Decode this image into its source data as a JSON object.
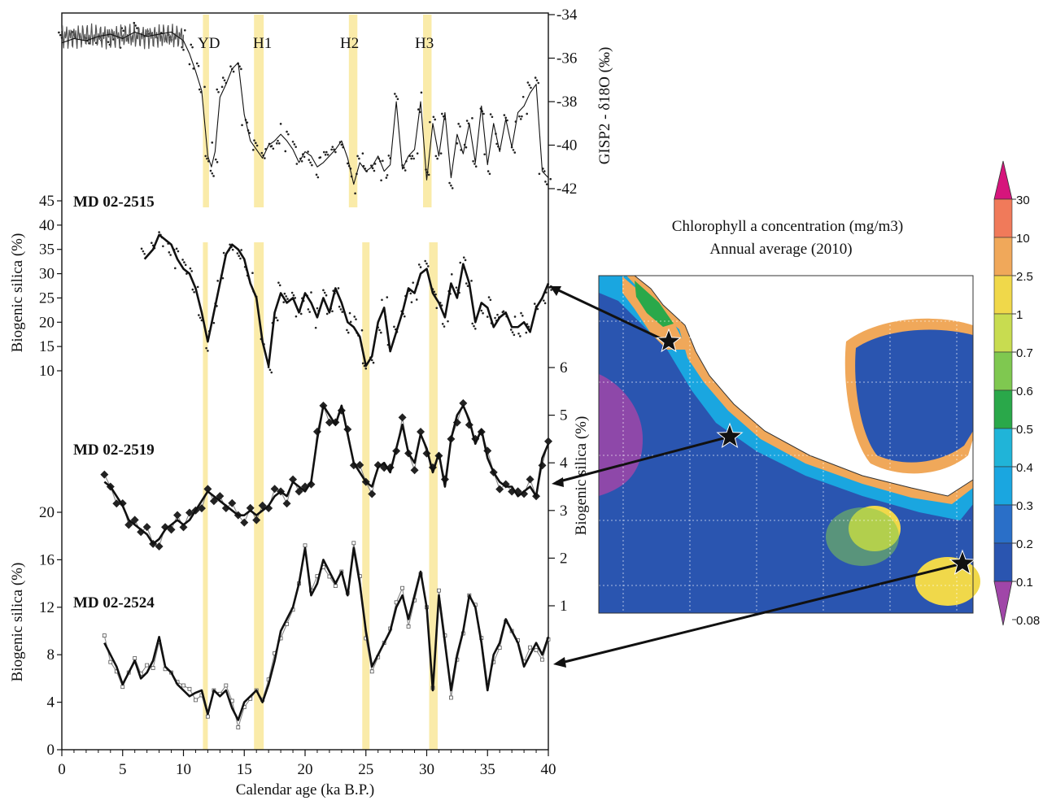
{
  "chart_data": [
    {
      "type": "line",
      "panel": "GISP2",
      "ylabel": "GISP2 - δ18O (‰)",
      "ylim": [
        -43,
        -34
      ],
      "yticks": [
        -34,
        -36,
        -38,
        -40,
        -42
      ],
      "events": [
        {
          "label": "YD",
          "x": [
            11.6,
            12.1
          ]
        },
        {
          "label": "H1",
          "x": [
            15.8,
            16.6
          ]
        },
        {
          "label": "H2",
          "x": [
            23.6,
            24.3
          ]
        },
        {
          "label": "H3",
          "x": [
            29.7,
            30.4
          ]
        }
      ],
      "series": [
        {
          "name": "",
          "x": [
            0,
            1,
            2,
            3,
            4,
            5,
            6,
            7,
            8,
            9,
            10,
            10.5,
            11,
            11.5,
            12,
            12.3,
            12.6,
            13,
            13.5,
            14,
            14.5,
            15,
            15.5,
            16,
            16.5,
            17,
            17.5,
            18,
            18.5,
            19,
            19.5,
            20,
            20.5,
            21,
            21.5,
            22,
            22.5,
            23,
            23.5,
            24,
            24.5,
            25,
            25.5,
            26,
            26.5,
            27,
            27.5,
            28,
            28.5,
            29,
            29.5,
            30,
            30.5,
            31,
            31.5,
            32,
            32.5,
            33,
            33.5,
            34,
            34.5,
            35,
            35.5,
            36,
            36.5,
            37,
            37.5,
            38,
            38.5,
            39,
            39.5,
            40
          ],
          "values": [
            -35.3,
            -35.1,
            -35.2,
            -35.0,
            -34.9,
            -35.1,
            -34.8,
            -35.0,
            -34.9,
            -34.8,
            -35.2,
            -35.8,
            -36.6,
            -37.5,
            -40.5,
            -41.0,
            -40.3,
            -37.8,
            -37.2,
            -36.5,
            -36.2,
            -38.6,
            -39.8,
            -40.2,
            -40.6,
            -40.0,
            -39.8,
            -39.5,
            -39.8,
            -40.2,
            -40.8,
            -40.3,
            -40.5,
            -41.0,
            -40.8,
            -40.5,
            -40.2,
            -39.8,
            -40.6,
            -41.8,
            -40.8,
            -41.2,
            -41.0,
            -40.5,
            -41.2,
            -40.9,
            -38.0,
            -41.1,
            -40.5,
            -40.2,
            -38.0,
            -41.6,
            -39.0,
            -40.5,
            -38.5,
            -41.5,
            -39.5,
            -40.4,
            -39.0,
            -40.8,
            -38.2,
            -40.9,
            -39.0,
            -40.3,
            -38.8,
            -40.1,
            -38.5,
            -38.2,
            -37.6,
            -37.2,
            -41.2,
            -41.5
          ]
        }
      ]
    },
    {
      "type": "line",
      "panel": "MD 02-2515",
      "ylabel": "Biogenic silica (%)",
      "ylim": [
        10,
        45
      ],
      "yticks": [
        10,
        15,
        20,
        25,
        30,
        35,
        40,
        45
      ],
      "events": [
        {
          "label": "",
          "x": [
            11.6,
            12.0
          ]
        },
        {
          "label": "",
          "x": [
            15.8,
            16.6
          ]
        },
        {
          "label": "",
          "x": [
            24.7,
            25.3
          ]
        },
        {
          "label": "",
          "x": [
            30.2,
            30.9
          ]
        }
      ],
      "series": [
        {
          "name": "",
          "x": [
            6.8,
            7.5,
            8,
            8.5,
            9,
            9.5,
            10,
            10.5,
            11,
            11.5,
            12,
            12.5,
            13,
            13.5,
            14,
            14.5,
            15,
            15.5,
            16,
            16.5,
            17,
            17.5,
            18,
            18.5,
            19,
            19.5,
            20,
            20.5,
            21,
            21.5,
            22,
            22.5,
            23,
            23.5,
            24,
            24.5,
            25,
            25.5,
            26,
            26.5,
            27,
            27.5,
            28,
            28.5,
            29,
            29.5,
            30,
            30.5,
            31,
            31.5,
            32,
            32.5,
            33,
            33.5,
            34,
            34.5,
            35,
            35.5,
            36,
            36.5,
            37,
            37.5,
            38,
            38.5,
            39,
            39.5,
            40
          ],
          "values": [
            33,
            35,
            38,
            37,
            36,
            33,
            31,
            30,
            27,
            22,
            16,
            22,
            28,
            34,
            36,
            35,
            33,
            28,
            25,
            16,
            11,
            22,
            26,
            24,
            25,
            22,
            26,
            24,
            21,
            25,
            22,
            27,
            24,
            20,
            19,
            17,
            11,
            13,
            20,
            23,
            14,
            18,
            22,
            27,
            26,
            30,
            31,
            26,
            24,
            21,
            28,
            25,
            32,
            28,
            20,
            24,
            23,
            19,
            21,
            22,
            19,
            19,
            20,
            18,
            23,
            25,
            28
          ]
        }
      ]
    },
    {
      "type": "line",
      "panel": "MD 02-2519",
      "ylabel": "Biogenic silica (%)",
      "ylim": [
        1,
        6
      ],
      "yticks": [
        1,
        2,
        3,
        4,
        5,
        6
      ],
      "series": [
        {
          "name": "",
          "x": [
            3.5,
            4,
            4.5,
            5,
            5.5,
            6,
            6.5,
            7,
            7.5,
            8,
            8.5,
            9,
            9.5,
            10,
            10.5,
            11,
            11.5,
            12,
            12.5,
            13,
            13.5,
            14,
            14.5,
            15,
            15.5,
            16,
            16.5,
            17,
            17.5,
            18,
            18.5,
            19,
            19.5,
            20,
            20.5,
            21,
            21.5,
            22,
            22.5,
            23,
            23.5,
            24,
            24.5,
            25,
            25.5,
            26,
            26.5,
            27,
            27.5,
            28,
            28.5,
            29,
            29.5,
            30,
            30.5,
            31,
            31.5,
            32,
            32.5,
            33,
            33.5,
            34,
            34.5,
            35,
            35.5,
            36,
            36.5,
            37,
            37.5,
            38,
            38.5,
            39,
            39.5,
            40
          ],
          "values": [
            3.6,
            3.5,
            3.3,
            3.1,
            2.8,
            2.7,
            2.6,
            2.5,
            2.3,
            2.4,
            2.6,
            2.7,
            2.8,
            2.7,
            2.8,
            3.0,
            3.2,
            3.4,
            3.3,
            3.2,
            3.1,
            3.0,
            2.9,
            2.9,
            3.0,
            2.9,
            3.0,
            3.1,
            3.3,
            3.4,
            3.3,
            3.6,
            3.5,
            3.4,
            3.6,
            4.5,
            5.2,
            5.0,
            4.8,
            5.2,
            4.6,
            4.0,
            3.8,
            3.6,
            3.5,
            3.9,
            4.0,
            3.8,
            4.3,
            4.8,
            4.2,
            4.0,
            4.6,
            4.3,
            3.8,
            4.2,
            3.5,
            4.5,
            5.0,
            5.2,
            4.9,
            4.4,
            4.7,
            4.1,
            3.8,
            3.6,
            3.5,
            3.5,
            3.3,
            3.4,
            3.5,
            3.3,
            4.1,
            4.4
          ]
        }
      ]
    },
    {
      "type": "line",
      "panel": "MD 02-2524",
      "ylabel": "Biogenic silica (%)",
      "xlabel": "Calendar age (ka B.P.)",
      "xlim": [
        0,
        40
      ],
      "xticks": [
        0,
        5,
        10,
        15,
        20,
        25,
        30,
        35,
        40
      ],
      "ylim": [
        0,
        20
      ],
      "yticks": [
        0,
        4,
        8,
        12,
        16,
        20
      ],
      "series": [
        {
          "name": "",
          "x": [
            3.5,
            4,
            4.5,
            5,
            5.5,
            6,
            6.5,
            7,
            7.5,
            8,
            8.5,
            9,
            9.5,
            10,
            10.5,
            11,
            11.5,
            12,
            12.5,
            13,
            13.5,
            14,
            14.5,
            15,
            15.5,
            16,
            16.5,
            17,
            17.5,
            18,
            18.5,
            19,
            19.5,
            20,
            20.5,
            21,
            21.5,
            22,
            22.5,
            23,
            23.5,
            24,
            24.5,
            25,
            25.5,
            26,
            26.5,
            27,
            27.5,
            28,
            28.5,
            29,
            29.5,
            30,
            30.5,
            31,
            31.5,
            32,
            32.5,
            33,
            33.5,
            34,
            34.5,
            35,
            35.5,
            36,
            36.5,
            37,
            37.5,
            38,
            38.5,
            39,
            39.5,
            40
          ],
          "values": [
            9.0,
            8.0,
            7.0,
            5.5,
            6.5,
            7.5,
            6.0,
            6.5,
            7.5,
            9.5,
            7.0,
            6.5,
            5.5,
            5.0,
            4.5,
            4.8,
            5.0,
            3.0,
            5.0,
            4.5,
            5.0,
            3.5,
            2.5,
            4.0,
            4.5,
            5.0,
            4.0,
            5.5,
            7.5,
            10.0,
            11.0,
            12.0,
            14.0,
            17.0,
            13.0,
            14.0,
            16.0,
            15.0,
            14.0,
            15.0,
            13.0,
            17.0,
            14.0,
            10.0,
            7.0,
            8.0,
            9.0,
            10.0,
            12.0,
            13.0,
            11.0,
            13.0,
            15.0,
            12.0,
            5.0,
            13.0,
            9.0,
            5.0,
            8.0,
            10.0,
            13.0,
            12.0,
            9.0,
            5.0,
            8.0,
            9.0,
            11.0,
            10.0,
            9.0,
            7.0,
            8.0,
            9.0,
            8.0,
            9.5
          ]
        }
      ]
    }
  ],
  "labels": {
    "yd": "YD",
    "h1": "H1",
    "h2": "H2",
    "h3": "H3",
    "gisp_ylabel": "GISP2 - δ18O (‰)",
    "core1": "MD 02-2515",
    "core2": "MD 02-2519",
    "core3": "MD 02-2524",
    "bsi": "Biogenic silica (%)",
    "xlabel": "Calendar age (ka B.P.)"
  },
  "map": {
    "title_line1": "Chlorophyll a concentration (mg/m3)",
    "title_line2": "Annual average (2010)",
    "colorbar": {
      "labels": [
        "30",
        "10",
        "2.5",
        "1",
        "0.7",
        "0.6",
        "0.5",
        "0.4",
        "0.3",
        "0.2",
        "0.1",
        "0.08"
      ],
      "colors": [
        "#d6157c",
        "#f07a5a",
        "#f0a85a",
        "#f0d84a",
        "#c8dc50",
        "#7fc850",
        "#2aa84a",
        "#20b4d8",
        "#1aa6e0",
        "#2a6fc8",
        "#2a55b0",
        "#a046a8"
      ]
    }
  }
}
